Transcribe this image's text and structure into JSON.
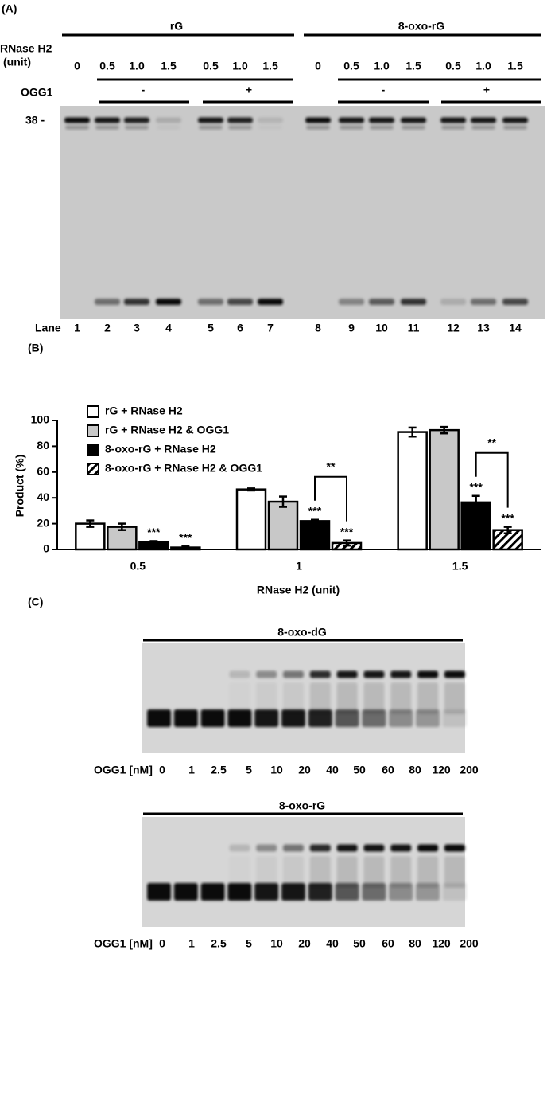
{
  "panel_a": {
    "label": "(A)",
    "groups": [
      "rG",
      "8-oxo-rG"
    ],
    "rnase_label": "RNase H2",
    "rnase_unit": "(unit)",
    "rnase_units": [
      "0",
      "0.5",
      "1.0",
      "1.5",
      "0.5",
      "1.0",
      "1.5",
      "0",
      "0.5",
      "1.0",
      "1.5",
      "0.5",
      "1.0",
      "1.5"
    ],
    "ogg1_label": "OGG1",
    "ogg1_states": [
      "-",
      "+",
      "-",
      "+"
    ],
    "marker": "38 -",
    "lane_label": "Lane",
    "lanes": [
      "1",
      "2",
      "3",
      "4",
      "5",
      "6",
      "7",
      "8",
      "9",
      "10",
      "11",
      "12",
      "13",
      "14"
    ]
  },
  "chart_data": {
    "type": "bar",
    "panel_label": "(B)",
    "x_label": "RNase H2 (unit)",
    "y_label": "Product (%)",
    "categories": [
      "0.5",
      "1",
      "1.5"
    ],
    "ylim": [
      0,
      100
    ],
    "yticks": [
      0,
      20,
      40,
      60,
      80,
      100
    ],
    "grid": false,
    "legend": "upper left",
    "series": [
      {
        "name": "rG + RNase H2",
        "color": "#ffffff",
        "values": [
          20,
          46.5,
          91
        ],
        "errors": [
          2.5,
          0.8,
          3.5
        ],
        "value_annotations": [
          null,
          null,
          null
        ]
      },
      {
        "name": "rG + RNase H2 & OGG1",
        "color": "#c8c8c8",
        "values": [
          17.5,
          37,
          92.5
        ],
        "errors": [
          2.5,
          4,
          2.5
        ],
        "value_annotations": [
          null,
          null,
          null
        ]
      },
      {
        "name": "8-oxo-rG + RNase H2",
        "color": "#000000",
        "values": [
          5.5,
          22,
          36.5
        ],
        "errors": [
          1,
          1,
          5
        ],
        "value_annotations": [
          "***",
          "***",
          "***"
        ]
      },
      {
        "name": "8-oxo-rG + RNase H2 & OGG1",
        "color": "#000000",
        "pattern": "hatch",
        "values": [
          1.5,
          5,
          15
        ],
        "errors": [
          0.8,
          2,
          2.5
        ],
        "value_annotations": [
          "***",
          "***",
          "***"
        ]
      }
    ],
    "bracket_labels": [
      null,
      "**",
      "**"
    ]
  },
  "panel_c": {
    "label": "(C)",
    "gels": [
      {
        "title": "8-oxo-dG",
        "x_label": "OGG1 [nM]",
        "concentrations": [
          "0",
          "1",
          "2.5",
          "5",
          "10",
          "20",
          "40",
          "50",
          "60",
          "80",
          "120",
          "200"
        ]
      },
      {
        "title": "8-oxo-rG",
        "x_label": "OGG1 [nM]",
        "concentrations": [
          "0",
          "1",
          "2.5",
          "5",
          "10",
          "20",
          "40",
          "50",
          "60",
          "80",
          "120",
          "200"
        ]
      }
    ]
  }
}
